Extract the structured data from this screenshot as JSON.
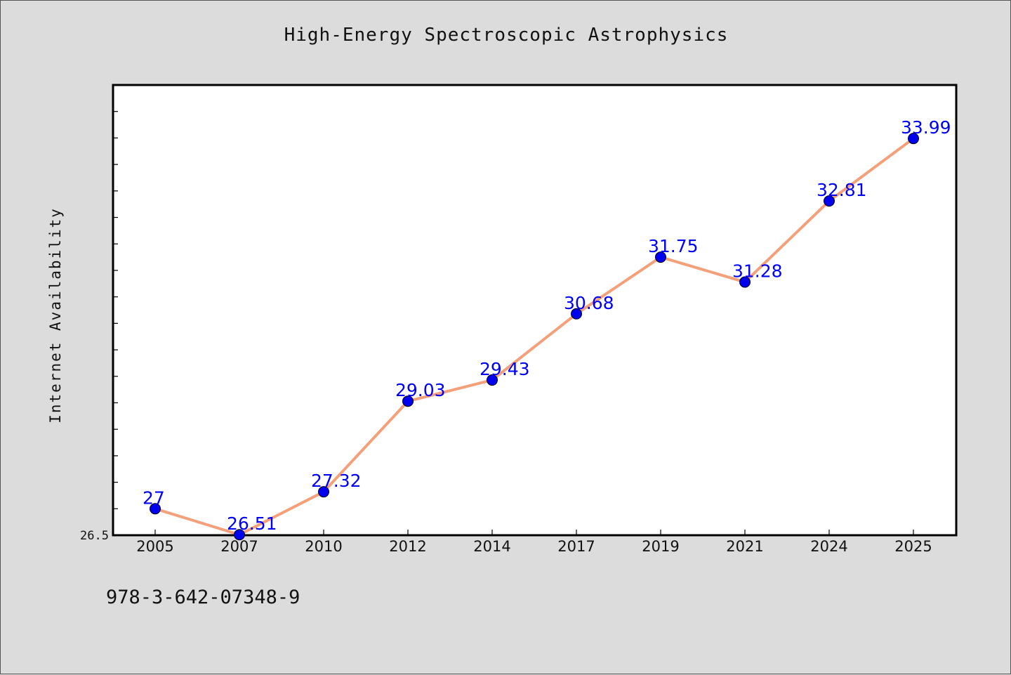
{
  "chart_data": {
    "type": "line",
    "title": "High-Energy Spectroscopic Astrophysics",
    "xlabel": "",
    "ylabel": "Internet Availability",
    "categories": [
      "2005",
      "2007",
      "2010",
      "2012",
      "2014",
      "2017",
      "2019",
      "2021",
      "2024",
      "2025"
    ],
    "series": [
      {
        "values": [
          27,
          26.51,
          27.32,
          29.03,
          29.43,
          30.68,
          31.75,
          31.28,
          32.81,
          33.99
        ],
        "data_labels": [
          "27",
          "26.51",
          "27.32",
          "29.03",
          "29.43",
          "30.68",
          "31.75",
          "31.28",
          "32.81",
          "33.99"
        ],
        "line_color": "#f4a07a",
        "marker_color": "#0000ee"
      }
    ],
    "ytick_labels": [
      "26.5"
    ],
    "ylim": [
      26.5,
      35
    ],
    "grid": false,
    "legend": "none"
  },
  "footer": {
    "isbn": "978-3-642-07348-9"
  },
  "colors": {
    "background": "#dcdcdc",
    "plot_background": "#ffffff",
    "data_label": "#0000ff"
  }
}
